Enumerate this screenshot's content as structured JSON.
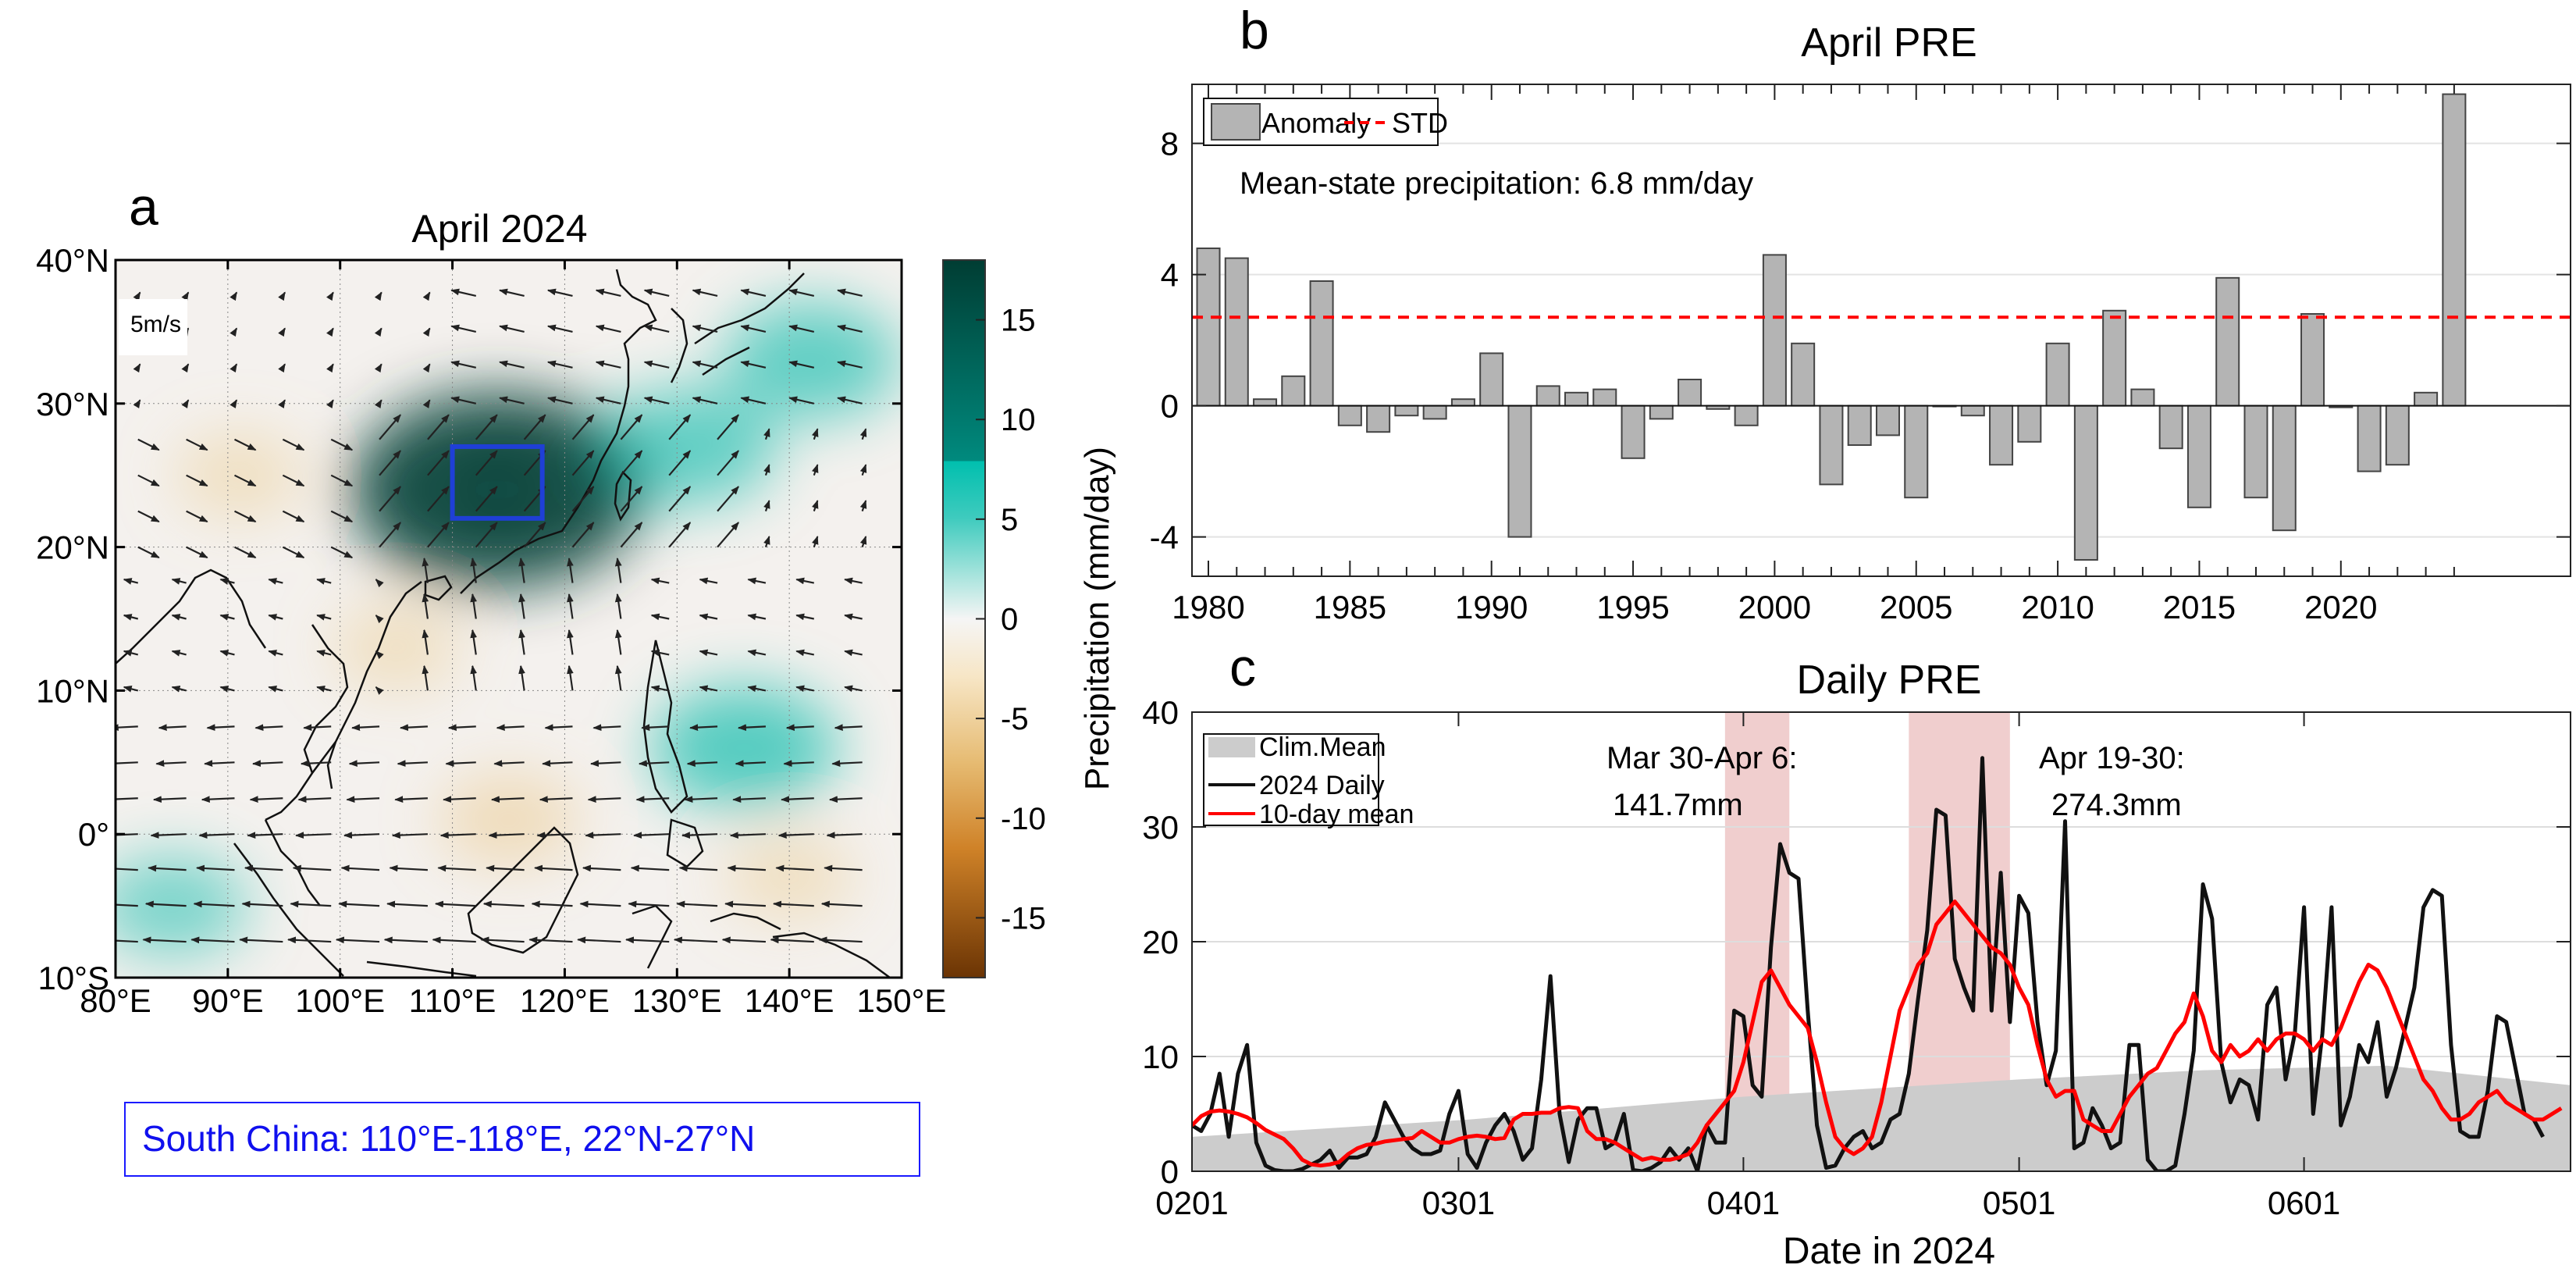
{
  "panels": {
    "a": {
      "label": "a"
    },
    "b": {
      "label": "b"
    },
    "c": {
      "label": "c"
    }
  },
  "chart_data": [
    {
      "id": "a",
      "type": "heatmap",
      "title": "April 2024",
      "subtitle_box": "South China: 110°E-118°E, 22°N-27°N",
      "xlabel": "",
      "ylabel": "",
      "x_ticks": [
        "80°E",
        "90°E",
        "100°E",
        "110°E",
        "120°E",
        "130°E",
        "140°E",
        "150°E"
      ],
      "y_ticks": [
        "40°N",
        "30°N",
        "20°N",
        "10°N",
        "0°",
        "10°S"
      ],
      "xlim": [
        80,
        150
      ],
      "ylim": [
        -10,
        40
      ],
      "vector_scale_label": "5m/s",
      "highlight_region": {
        "lon": [
          110,
          118
        ],
        "lat": [
          22,
          27
        ],
        "color": "#1f3fd6"
      },
      "colorbar": {
        "label": "Precipitation (mm/day)",
        "ticks": [
          15,
          10,
          5,
          0,
          -5,
          -10,
          -15
        ],
        "range": [
          -18,
          18
        ],
        "colors": {
          "high": "#003d33",
          "mid_high": "#00b8a8",
          "zero": "#f5f5f5",
          "mid_low": "#e8c27a",
          "low": "#6b3404"
        }
      },
      "anomaly_centers": [
        {
          "lon": 114,
          "lat": 24,
          "value": 17
        },
        {
          "lon": 131,
          "lat": 27,
          "value": 7
        },
        {
          "lon": 142,
          "lat": 33,
          "value": 7
        },
        {
          "lon": 136,
          "lat": 6,
          "value": 8
        },
        {
          "lon": 91,
          "lat": 25,
          "value": -3
        },
        {
          "lon": 105,
          "lat": 13,
          "value": -3
        },
        {
          "lon": 115,
          "lat": 1,
          "value": -4
        },
        {
          "lon": 85,
          "lat": -5,
          "value": 5
        },
        {
          "lon": 140,
          "lat": -3,
          "value": -3
        }
      ]
    },
    {
      "id": "b",
      "type": "bar",
      "title": "April PRE",
      "xlabel": "",
      "ylabel": "",
      "annotation": "Mean-state precipitation: 6.8 mm/day",
      "legend": {
        "position": "top-left",
        "entries": [
          "Anomaly",
          "STD"
        ]
      },
      "x_ticks": [
        "1980",
        "1985",
        "1990",
        "1995",
        "2000",
        "2005",
        "2010",
        "2015",
        "2020"
      ],
      "y_ticks": [
        "8",
        "4",
        "0",
        "-4"
      ],
      "ylim": [
        -5.2,
        9.8
      ],
      "xlim": [
        1979,
        2025
      ],
      "std": 2.7,
      "categories": [
        1980,
        1981,
        1982,
        1983,
        1984,
        1985,
        1986,
        1987,
        1988,
        1989,
        1990,
        1991,
        1992,
        1993,
        1994,
        1995,
        1996,
        1997,
        1998,
        1999,
        2000,
        2001,
        2002,
        2003,
        2004,
        2005,
        2006,
        2007,
        2008,
        2009,
        2010,
        2011,
        2012,
        2013,
        2014,
        2015,
        2016,
        2017,
        2018,
        2019,
        2020,
        2021,
        2022,
        2023,
        2024
      ],
      "values": [
        4.8,
        4.5,
        0.2,
        0.9,
        3.8,
        -0.6,
        -0.8,
        -0.3,
        -0.4,
        0.2,
        1.6,
        -4.0,
        0.6,
        0.4,
        0.5,
        -1.6,
        -0.4,
        0.8,
        -0.1,
        -0.6,
        4.6,
        1.9,
        -2.4,
        -1.2,
        -0.9,
        -2.8,
        0.0,
        -0.3,
        -1.8,
        -1.1,
        1.9,
        -4.7,
        2.9,
        0.5,
        -1.3,
        -3.1,
        3.9,
        -2.8,
        -3.8,
        2.8,
        -0.05,
        -2.0,
        -1.8,
        0.4,
        9.5
      ],
      "colors": {
        "bar": "#b4b4b4",
        "std": "#ff0000"
      }
    },
    {
      "id": "c",
      "type": "line",
      "title": "Daily PRE",
      "xlabel": "Date in 2024",
      "ylabel": "",
      "x_ticks": [
        "0201",
        "0301",
        "0401",
        "0501",
        "0601"
      ],
      "x_tick_days": [
        0,
        29,
        60,
        90,
        121
      ],
      "y_ticks": [
        "40",
        "30",
        "20",
        "10",
        "0"
      ],
      "ylim": [
        0,
        40
      ],
      "xlim_days": [
        0,
        150
      ],
      "legend": {
        "position": "top-left",
        "entries": [
          "Clim.Mean",
          "2024 Daily",
          "10-day mean"
        ]
      },
      "shaded_periods": [
        {
          "start_day": 58,
          "end_day": 65,
          "label_line1": "Mar 30-Apr 6:",
          "label_line2": "141.7mm"
        },
        {
          "start_day": 78,
          "end_day": 89,
          "label_line1": "Apr 19-30:",
          "label_line2": "274.3mm"
        }
      ],
      "colors": {
        "clim": "#cccccc",
        "daily": "#111111",
        "mean10": "#ff0000",
        "shade": "#e8b4b4"
      },
      "series": [
        {
          "name": "Clim.Mean",
          "x": [
            0,
            30,
            60,
            90,
            110,
            130,
            150
          ],
          "values": [
            3.0,
            4.5,
            6.5,
            8.0,
            8.8,
            9.2,
            7.5
          ]
        },
        {
          "name": "2024 Daily",
          "values": [
            4.0,
            3.5,
            5.0,
            8.5,
            3.0,
            8.5,
            11.0,
            2.5,
            0.5,
            0.1,
            0.0,
            0.0,
            0.2,
            0.6,
            1.0,
            1.8,
            0.3,
            1.2,
            1.2,
            1.5,
            3.0,
            6.0,
            4.5,
            3.0,
            2.0,
            1.5,
            1.5,
            1.8,
            5.0,
            7.0,
            1.5,
            0.3,
            2.5,
            4.0,
            5.0,
            3.5,
            1.0,
            2.0,
            8.0,
            17.0,
            5.0,
            0.8,
            4.5,
            5.5,
            5.5,
            2.0,
            2.5,
            5.0,
            0.1,
            0.0,
            0.3,
            0.8,
            2.0,
            1.0,
            2.0,
            0.0,
            4.0,
            2.5,
            2.5,
            14.0,
            13.5,
            7.5,
            6.5,
            19.5,
            28.5,
            26.0,
            25.5,
            14.0,
            4.0,
            0.3,
            0.5,
            2.0,
            3.0,
            3.5,
            2.0,
            2.5,
            4.5,
            5.0,
            8.5,
            15.0,
            21.0,
            31.5,
            31.0,
            18.5,
            16.0,
            14.0,
            36.0,
            14.0,
            26.0,
            13.0,
            24.0,
            22.5,
            13.0,
            7.5,
            10.5,
            30.5,
            2.0,
            2.5,
            5.5,
            4.0,
            2.0,
            2.5,
            11.0,
            11.0,
            1.0,
            0.0,
            0.0,
            0.5,
            5.0,
            10.5,
            25.0,
            22.0,
            9.5,
            6.0,
            8.0,
            7.5,
            4.5,
            14.5,
            16.0,
            8.0,
            12.0,
            23.0,
            5.0,
            12.0,
            23.0,
            4.0,
            6.5,
            11.0,
            9.5,
            13.0,
            6.5,
            9.0,
            12.5,
            16.0,
            23.0,
            24.5,
            24.0,
            11.0,
            3.5,
            3.0,
            3.0,
            7.0,
            13.5,
            13.0,
            9.0,
            5.0,
            4.5,
            3.0
          ]
        },
        {
          "name": "10-day mean",
          "values": [
            4.0,
            4.8,
            5.2,
            5.3,
            5.2,
            5.0,
            4.7,
            4.2,
            3.6,
            3.2,
            2.8,
            2.0,
            1.0,
            0.6,
            0.5,
            0.6,
            0.8,
            1.5,
            2.0,
            2.3,
            2.4,
            2.6,
            2.7,
            2.8,
            2.9,
            3.5,
            3.0,
            2.5,
            2.5,
            2.8,
            3.0,
            3.1,
            3.0,
            2.8,
            2.9,
            4.5,
            5.0,
            5.0,
            5.1,
            5.1,
            5.5,
            5.6,
            5.5,
            3.5,
            2.8,
            2.8,
            2.5,
            2.0,
            1.5,
            1.0,
            1.2,
            1.0,
            1.0,
            1.2,
            1.5,
            2.5,
            4.0,
            5.0,
            6.0,
            7.0,
            9.5,
            13.0,
            16.5,
            17.5,
            16.0,
            14.5,
            13.5,
            12.5,
            9.5,
            6.0,
            3.0,
            2.0,
            1.5,
            2.0,
            3.0,
            6.0,
            10.0,
            14.0,
            16.0,
            18.0,
            19.0,
            21.5,
            22.5,
            23.5,
            22.5,
            21.5,
            20.5,
            19.5,
            19.0,
            18.0,
            16.0,
            14.5,
            11.0,
            8.0,
            6.5,
            7.0,
            7.0,
            4.5,
            4.0,
            3.5,
            3.5,
            5.0,
            6.5,
            7.5,
            8.5,
            9.0,
            10.5,
            12.0,
            13.0,
            15.5,
            13.5,
            10.5,
            9.5,
            11.0,
            10.0,
            10.5,
            11.5,
            10.5,
            11.5,
            12.0,
            12.0,
            11.5,
            10.5,
            11.5,
            11.0,
            12.5,
            14.5,
            16.5,
            18.0,
            17.5,
            16.0,
            14.0,
            12.0,
            10.0,
            8.0,
            7.0,
            5.5,
            4.5,
            4.5,
            5.0,
            6.0,
            6.5,
            7.0,
            6.0,
            5.5,
            5.0,
            4.5,
            4.5,
            5.0,
            5.5
          ]
        }
      ]
    }
  ]
}
